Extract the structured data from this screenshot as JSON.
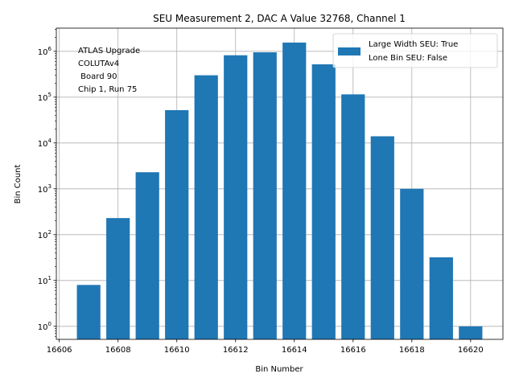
{
  "chart_data": {
    "type": "bar",
    "title": "SEU Measurement 2, DAC A Value 32768, Channel 1",
    "xlabel": "Bin Number",
    "ylabel": "Bin Count",
    "y_scale": "log",
    "x": [
      16607,
      16608,
      16609,
      16610,
      16611,
      16612,
      16613,
      16614,
      16615,
      16616,
      16617,
      16618,
      16619,
      16620
    ],
    "series": [
      {
        "name": "Large Width SEU: True\nLone Bin SEU: False",
        "values": [
          8,
          230,
          2300,
          52000,
          300000,
          820000,
          950000,
          1550000,
          520000,
          115000,
          14000,
          1000,
          32,
          1
        ]
      }
    ],
    "xlim": [
      16605.9,
      16621.1
    ],
    "ylim": [
      0.52,
      3200000
    ],
    "x_ticks": [
      16606,
      16608,
      16610,
      16612,
      16614,
      16616,
      16618,
      16620
    ],
    "y_ticks": [
      1,
      10,
      100,
      1000,
      10000,
      100000,
      1000000
    ],
    "y_tick_exponents": [
      "0",
      "1",
      "2",
      "3",
      "4",
      "5",
      "6"
    ],
    "grid": true,
    "legend_position": "top-right",
    "annotation_lines": [
      "ATLAS Upgrade",
      "COLUTAv4",
      " Board 90",
      "Chip 1, Run 75"
    ],
    "bar_color": "#1f77b4"
  }
}
